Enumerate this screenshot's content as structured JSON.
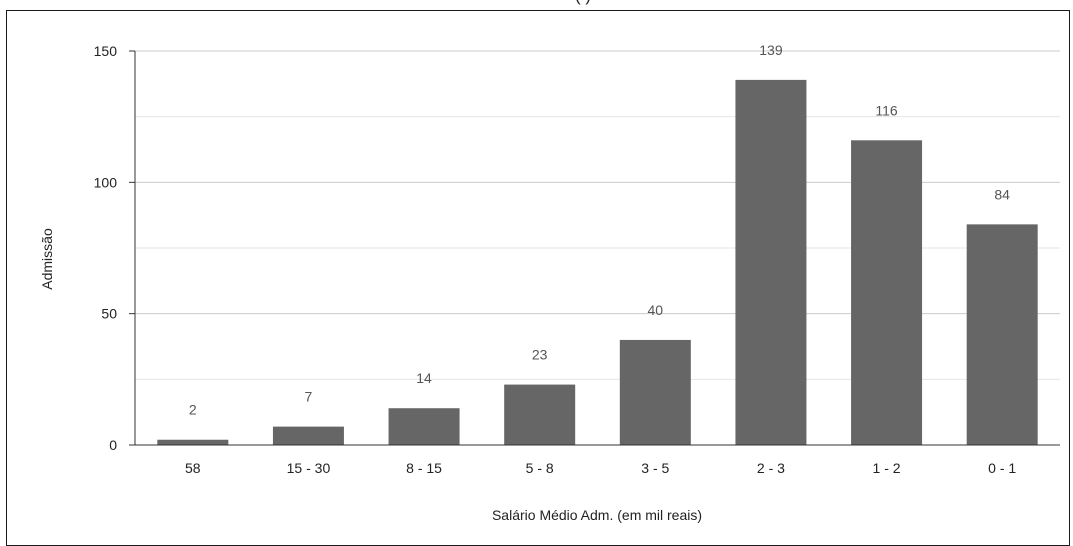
{
  "chart_data": {
    "type": "bar",
    "title_fragment": "(       )",
    "xlabel": "Salário Médio Adm. (em mil reais)",
    "ylabel": "Admissão",
    "categories": [
      "58",
      "15 - 30",
      "8 - 15",
      "5 - 8",
      "3 - 5",
      "2 - 3",
      "1 - 2",
      "0 - 1"
    ],
    "values": [
      2,
      7,
      14,
      23,
      40,
      139,
      116,
      84
    ],
    "data_labels": [
      "2",
      "7",
      "14",
      "23",
      "40",
      "139",
      "116",
      "84"
    ],
    "ylim": [
      0,
      150
    ],
    "yticks": [
      0,
      50,
      100,
      150
    ],
    "ytick_labels": [
      "0",
      "50",
      "100",
      "150"
    ],
    "minor_gridlines": [
      25,
      75,
      125
    ],
    "grid": true,
    "legend": "none",
    "colors": {
      "bar": "#666666",
      "grid": "#cccccc",
      "minor_grid": "#e6e6e6",
      "axis": "#333333"
    }
  }
}
